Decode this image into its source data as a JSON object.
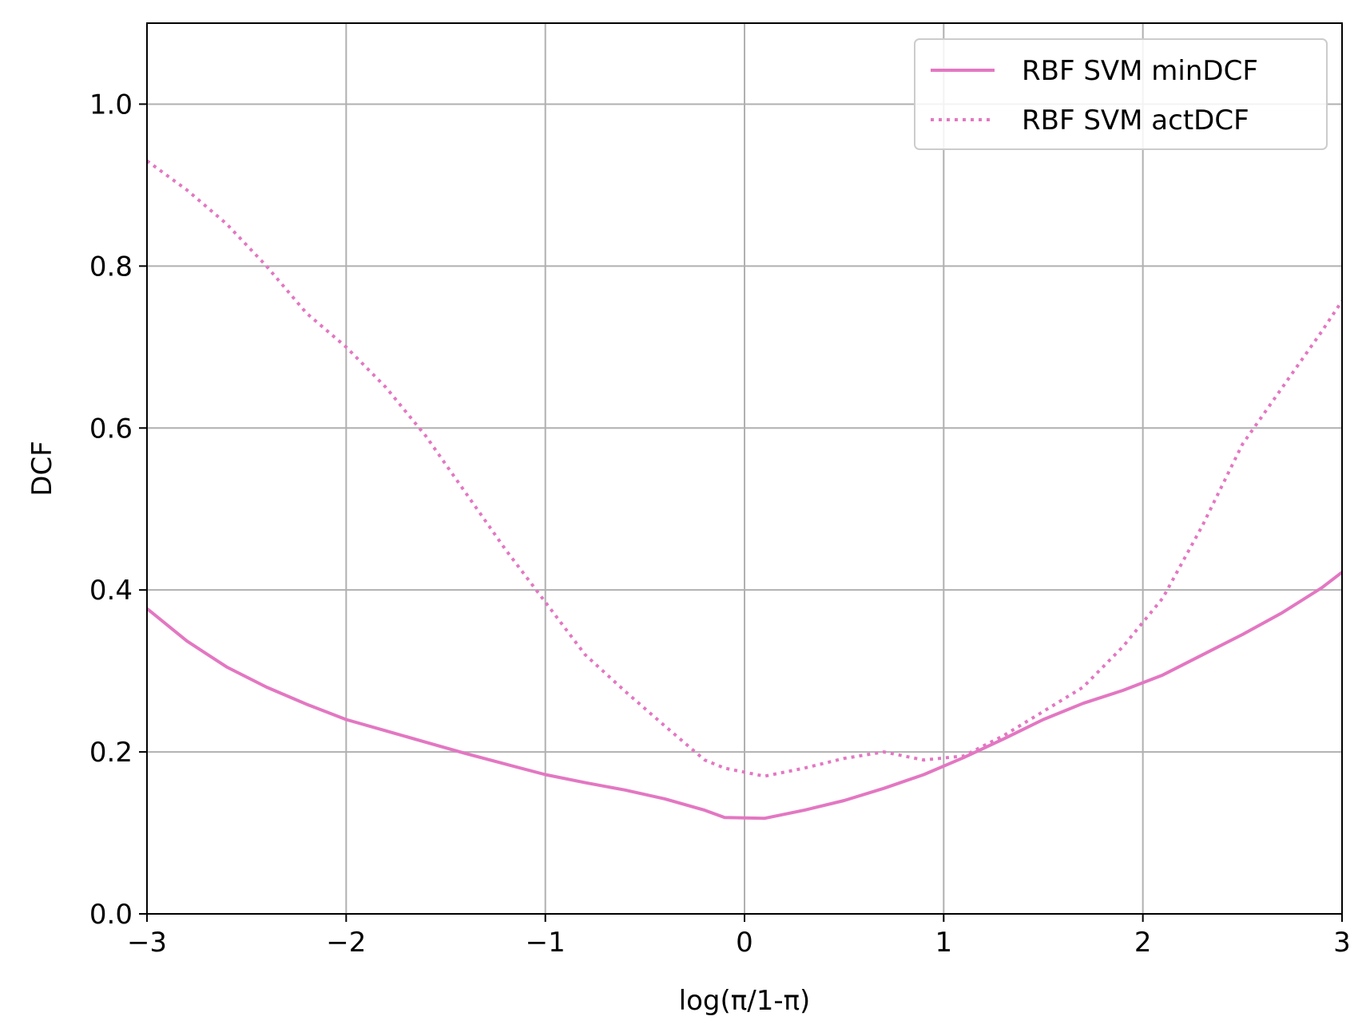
{
  "chart_data": {
    "type": "line",
    "title": "",
    "xlabel": "log(π/1-π)",
    "ylabel": "DCF",
    "xlim": [
      -3,
      3
    ],
    "ylim": [
      0.0,
      1.1
    ],
    "xticks": [
      -3,
      -2,
      -1,
      0,
      1,
      2,
      3
    ],
    "xtick_labels": [
      "−3",
      "−2",
      "−1",
      "0",
      "1",
      "2",
      "3"
    ],
    "yticks": [
      0.0,
      0.2,
      0.4,
      0.6,
      0.8,
      1.0
    ],
    "ytick_labels": [
      "0.0",
      "0.2",
      "0.4",
      "0.6",
      "0.8",
      "1.0"
    ],
    "grid": true,
    "legend_position": "top-right",
    "x": [
      -3.0,
      -2.8,
      -2.6,
      -2.4,
      -2.2,
      -2.0,
      -1.8,
      -1.6,
      -1.4,
      -1.2,
      -1.0,
      -0.8,
      -0.6,
      -0.4,
      -0.2,
      -0.1,
      0.1,
      0.3,
      0.5,
      0.7,
      0.9,
      1.1,
      1.3,
      1.5,
      1.7,
      1.9,
      2.1,
      2.3,
      2.5,
      2.7,
      2.9,
      3.0
    ],
    "series": [
      {
        "name": "RBF SVM minDCF",
        "color": "#e377c2",
        "linestyle": "solid",
        "values": [
          0.377,
          0.337,
          0.305,
          0.28,
          0.259,
          0.24,
          0.226,
          0.212,
          0.198,
          0.185,
          0.172,
          0.162,
          0.153,
          0.142,
          0.128,
          0.119,
          0.118,
          0.128,
          0.14,
          0.155,
          0.172,
          0.193,
          0.216,
          0.24,
          0.26,
          0.276,
          0.295,
          0.32,
          0.345,
          0.372,
          0.403,
          0.422
        ]
      },
      {
        "name": "RBF SVM actDCF",
        "color": "#e377c2",
        "linestyle": "dotted",
        "values": [
          0.93,
          0.894,
          0.852,
          0.8,
          0.742,
          0.7,
          0.65,
          0.59,
          0.52,
          0.45,
          0.385,
          0.32,
          0.275,
          0.232,
          0.19,
          0.18,
          0.17,
          0.18,
          0.192,
          0.2,
          0.19,
          0.195,
          0.22,
          0.25,
          0.28,
          0.33,
          0.39,
          0.48,
          0.58,
          0.65,
          0.72,
          0.757
        ]
      }
    ]
  }
}
